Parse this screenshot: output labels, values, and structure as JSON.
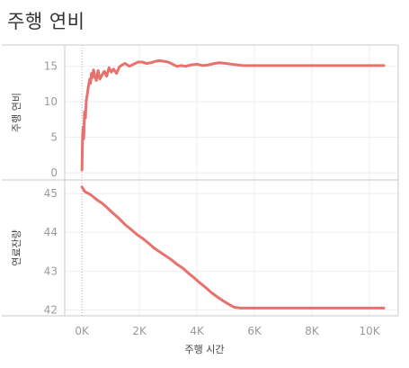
{
  "title": "주행 연비",
  "chart_data": [
    {
      "type": "line",
      "panel": "top",
      "ylabel": "주행 연비",
      "ylim": [
        -1,
        18
      ],
      "yticks": [
        0,
        5,
        10,
        15
      ],
      "series": [
        {
          "x": [
            0,
            20,
            40,
            60,
            90,
            120,
            150,
            180,
            210,
            240,
            270,
            300,
            330,
            360,
            400,
            450,
            500,
            560,
            620,
            700,
            780,
            860,
            940,
            1020,
            1100,
            1200,
            1300,
            1400,
            1500,
            1650,
            1800,
            1950,
            2100,
            2250,
            2400,
            2550,
            2700,
            2850,
            3000,
            3150,
            3300,
            3450,
            3600,
            3800,
            4000,
            4200,
            4400,
            4600,
            4800,
            5000,
            5200,
            5400,
            5600,
            6000,
            6500,
            7000,
            7500,
            8000,
            8500,
            9000,
            9500,
            10000,
            10500
          ],
          "y": [
            0.4,
            5.2,
            6.4,
            4.8,
            8.6,
            7.7,
            10.2,
            10.9,
            11.8,
            12.5,
            13.2,
            12.6,
            14.0,
            13.4,
            14.5,
            13.6,
            13.0,
            14.4,
            13.2,
            13.8,
            14.3,
            13.6,
            14.8,
            14.2,
            14.6,
            14.0,
            14.9,
            15.2,
            15.4,
            15.0,
            15.3,
            15.6,
            15.6,
            15.4,
            15.5,
            15.7,
            15.8,
            15.7,
            15.6,
            15.3,
            15.0,
            15.1,
            15.0,
            15.2,
            15.3,
            15.1,
            15.2,
            15.4,
            15.5,
            15.4,
            15.3,
            15.2,
            15.1,
            15.1,
            15.1,
            15.1,
            15.1,
            15.1,
            15.1,
            15.1,
            15.1,
            15.1,
            15.1
          ]
        }
      ]
    },
    {
      "type": "line",
      "panel": "bottom",
      "ylabel": "연료잔량",
      "xlabel": "주행 시간",
      "ylim": [
        41.85,
        45.35
      ],
      "yticks": [
        42,
        43,
        44,
        45
      ],
      "xlim": [
        -600,
        11000
      ],
      "xticks": [
        0,
        2000,
        4000,
        6000,
        8000,
        10000
      ],
      "xticklabels": [
        "0K",
        "2K",
        "4K",
        "6K",
        "8K",
        "10K"
      ],
      "series": [
        {
          "x": [
            0,
            100,
            300,
            500,
            700,
            900,
            1100,
            1300,
            1500,
            1700,
            1900,
            2100,
            2300,
            2500,
            2700,
            2900,
            3100,
            3300,
            3500,
            3700,
            3900,
            4100,
            4300,
            4500,
            4700,
            4900,
            5100,
            5300,
            5500,
            5700,
            6000,
            6500,
            7000,
            7500,
            8000,
            8500,
            9000,
            9500,
            10000,
            10500
          ],
          "y": [
            45.17,
            45.05,
            44.97,
            44.85,
            44.75,
            44.62,
            44.48,
            44.35,
            44.2,
            44.08,
            43.95,
            43.85,
            43.73,
            43.6,
            43.5,
            43.4,
            43.3,
            43.18,
            43.08,
            42.95,
            42.83,
            42.7,
            42.58,
            42.45,
            42.34,
            42.24,
            42.15,
            42.07,
            42.05,
            42.05,
            42.05,
            42.05,
            42.05,
            42.05,
            42.05,
            42.05,
            42.05,
            42.05,
            42.05,
            42.05
          ]
        }
      ]
    }
  ],
  "colors": {
    "series": "#e8706d",
    "grid": "#eeeeee",
    "zero_line": "#b0b0b0",
    "frame": "#c8c8c8"
  }
}
